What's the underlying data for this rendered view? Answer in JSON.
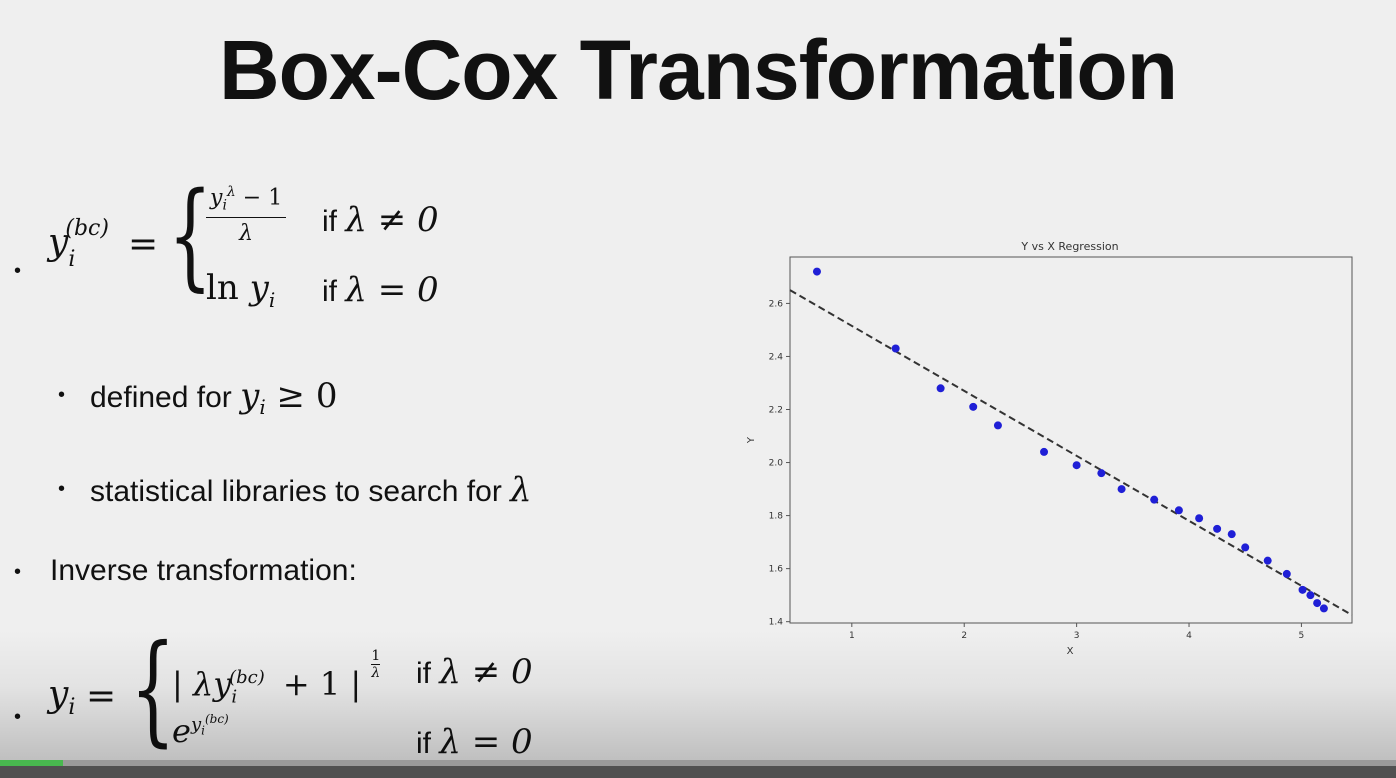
{
  "slide": {
    "title": "Box-Cox Transformation",
    "eq1": {
      "lhs_base": "y",
      "lhs_sub": "i",
      "lhs_sup": "(bc)",
      "equals": "=",
      "case1_num_base": "y",
      "case1_num_sub": "i",
      "case1_num_sup": "λ",
      "case1_num_rest": " − 1",
      "case1_den": "λ",
      "case1_cond_text": "if",
      "case1_cond_math": "λ ≠ 0",
      "case2_expr_ln": "ln",
      "case2_expr_base": "y",
      "case2_expr_sub": "i",
      "case2_cond_text": "if",
      "case2_cond_math": "λ = 0"
    },
    "sub_bullets": [
      {
        "text": "defined for ",
        "math_base": "y",
        "math_sub": "i",
        "math_rest": " ≥ 0"
      },
      {
        "text": "statistical libraries to search for ",
        "math": "λ"
      }
    ],
    "bullet_inverse": "Inverse transformation:",
    "eq2": {
      "lhs_base": "y",
      "lhs_sub": "i",
      "equals": "=",
      "case1_expr": "| λy",
      "case1_sub": "i",
      "case1_sup": "(bc)",
      "case1_rest": " + 1 |",
      "case1_exp_num": "1",
      "case1_exp_den": "λ",
      "case1_cond_text": "if",
      "case1_cond_math": "λ ≠ 0",
      "case2_base": "e",
      "case2_sup_base": "y",
      "case2_sup_sub": "i",
      "case2_sup_sup": "(bc)",
      "case2_cond_text": "if",
      "case2_cond_math": "λ = 0"
    },
    "bullet_char": "•"
  },
  "player": {
    "progress": 0.045
  },
  "chart_data": {
    "type": "scatter",
    "title": "Y vs X Regression",
    "xlabel": "X",
    "ylabel": "Y",
    "xlim": [
      0.45,
      5.45
    ],
    "ylim": [
      1.395,
      2.775
    ],
    "xticks": [
      1,
      2,
      3,
      4,
      5
    ],
    "yticks": [
      1.4,
      1.6,
      1.8,
      2.0,
      2.2,
      2.4,
      2.6
    ],
    "x": [
      0.69,
      1.39,
      1.79,
      2.08,
      2.3,
      2.71,
      3.0,
      3.22,
      3.4,
      3.69,
      3.91,
      4.09,
      4.25,
      4.38,
      4.5,
      4.7,
      4.87,
      5.01,
      5.08,
      5.14,
      5.2
    ],
    "y": [
      2.72,
      2.43,
      2.28,
      2.21,
      2.14,
      2.04,
      1.99,
      1.96,
      1.9,
      1.86,
      1.82,
      1.79,
      1.75,
      1.73,
      1.68,
      1.63,
      1.58,
      1.52,
      1.5,
      1.47,
      1.45
    ],
    "fit_line": {
      "x": [
        0.45,
        5.45
      ],
      "y": [
        2.65,
        1.425
      ],
      "style": "dashed"
    },
    "point_color": "#1f1fd6",
    "line_color": "#333333"
  }
}
